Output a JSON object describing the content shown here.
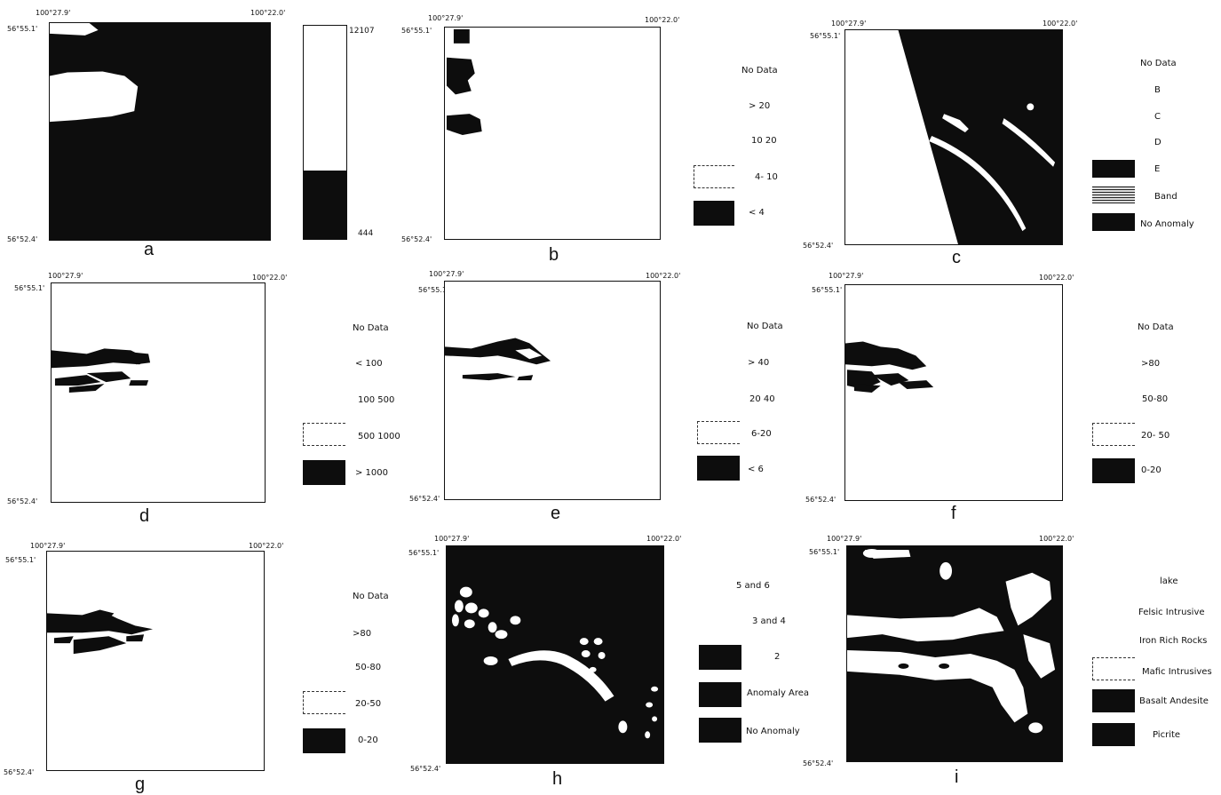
{
  "coords": {
    "top_left_lon": "100°27.9'",
    "top_right_lon": "100°22.0'",
    "top_lat": "56°55.1'",
    "bottom_lat": "56°52.4'"
  },
  "panels": [
    {
      "id": "a",
      "label": "a",
      "scale_max": "12107",
      "scale_min": "444"
    },
    {
      "id": "b",
      "label": "b",
      "legend": [
        "No Data",
        "> 20",
        "10 20",
        "4- 10",
        "< 4"
      ]
    },
    {
      "id": "c",
      "label": "c",
      "legend": [
        "No Data",
        "B",
        "C",
        "D",
        "E",
        "Band",
        "No Anomaly"
      ]
    },
    {
      "id": "d",
      "label": "d",
      "legend": [
        "No Data",
        "< 100",
        "100 500",
        "500 1000",
        "> 1000"
      ]
    },
    {
      "id": "e",
      "label": "e",
      "legend": [
        "No Data",
        "> 40",
        "20 40",
        "6-20",
        "< 6"
      ]
    },
    {
      "id": "f",
      "label": "f",
      "legend": [
        "No Data",
        ">80",
        "50-80",
        "20- 50",
        "0-20"
      ]
    },
    {
      "id": "g",
      "label": "g",
      "legend": [
        "No Data",
        ">80",
        "50-80",
        "20-50",
        "0-20"
      ]
    },
    {
      "id": "h",
      "label": "h",
      "legend": [
        "5 and 6",
        "3 and 4",
        "2",
        "Anomaly Area",
        "No Anomaly"
      ]
    },
    {
      "id": "i",
      "label": "i",
      "legend": [
        "lake",
        "Felsic Intrusive",
        "Iron Rich Rocks",
        "Mafic Intrusives",
        "Basalt Andesite",
        "Picrite"
      ]
    }
  ]
}
